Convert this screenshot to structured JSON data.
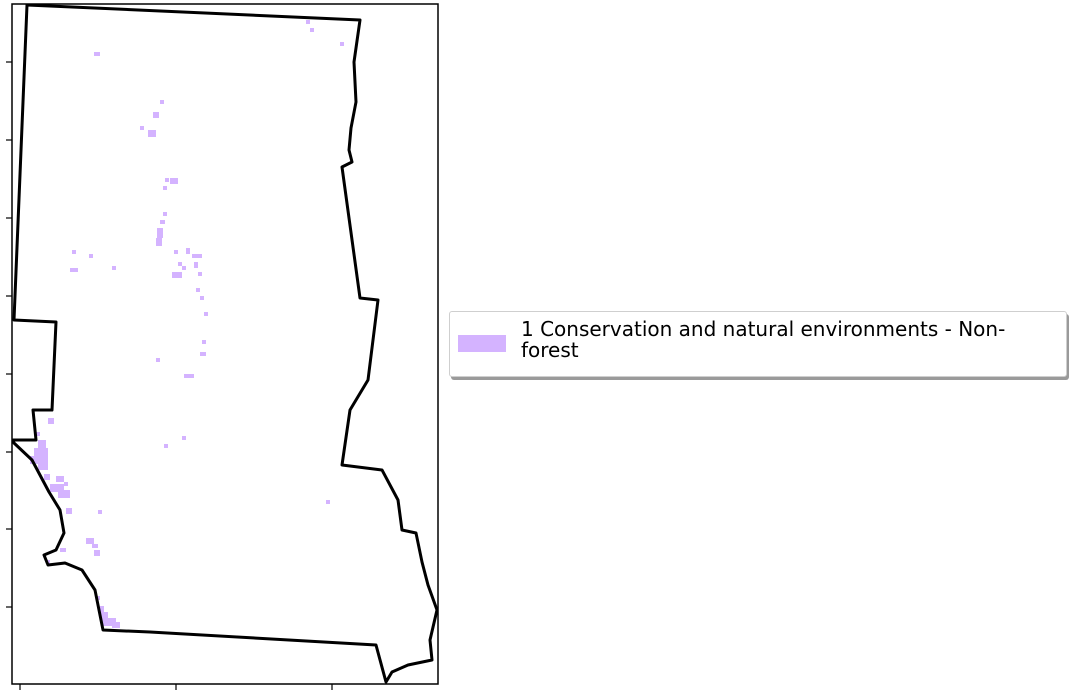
{
  "map": {
    "outline_color": "#000000",
    "frame_color": "#000000",
    "cell_color": "#d4b3ff",
    "ticks_labels_shown": false
  },
  "legend": {
    "entries": [
      {
        "label": "1 Conservation and natural environments - Non-forest",
        "color": "#d4b3ff"
      }
    ]
  }
}
